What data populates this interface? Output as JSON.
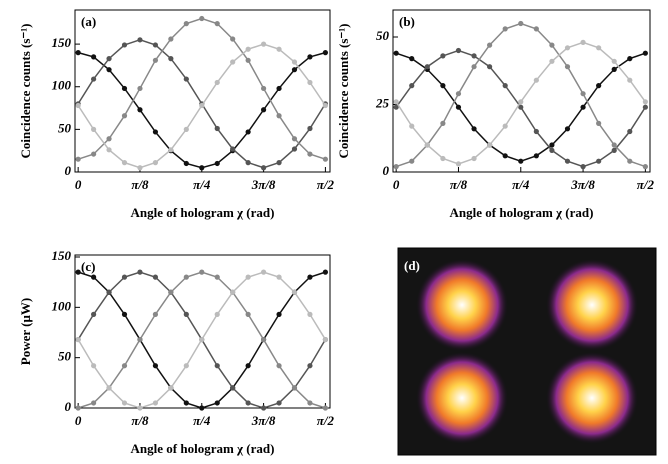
{
  "chart_data": [
    {
      "type": "line",
      "title": "(a)",
      "x_label": "Angle of hologram χ (rad)",
      "y_label": "Coincidence counts (s⁻¹)",
      "x": [
        0,
        0.0982,
        0.1963,
        0.2945,
        0.3927,
        0.4909,
        0.589,
        0.6872,
        0.7854,
        0.8836,
        0.9817,
        1.0799,
        1.1781,
        1.2763,
        1.3744,
        1.4726,
        1.5708
      ],
      "xlim": [
        -0.02,
        1.6
      ],
      "ylim": [
        0,
        190
      ],
      "xticks": [
        0,
        {
          "value": 0.3927,
          "label": "π/8"
        },
        {
          "value": 0.7854,
          "label": "π/4"
        },
        {
          "value": 1.1781,
          "label": "3π/8"
        },
        {
          "value": 1.5708,
          "label": "π/2"
        }
      ],
      "yticks": [
        0,
        50,
        100,
        150
      ],
      "series": [
        {
          "color": "#111111",
          "values": [
            140,
            135,
            120,
            98,
            73,
            47,
            25,
            10,
            5,
            10,
            25,
            47,
            73,
            98,
            120,
            135,
            140
          ]
        },
        {
          "color": "#555555",
          "values": [
            80,
            109,
            133,
            149,
            155,
            149,
            133,
            109,
            80,
            51,
            27,
            11,
            5,
            11,
            27,
            51,
            80
          ]
        },
        {
          "color": "#888888",
          "values": [
            15,
            21,
            39,
            66,
            98,
            131,
            156,
            174,
            180,
            174,
            156,
            131,
            98,
            66,
            39,
            21,
            15
          ]
        },
        {
          "color": "#bbbbbb",
          "values": [
            78,
            50,
            26,
            11,
            5,
            11,
            26,
            50,
            78,
            105,
            129,
            144,
            150,
            144,
            129,
            105,
            78
          ]
        }
      ]
    },
    {
      "type": "line",
      "title": "(b)",
      "x_label": "Angle of hologram χ (rad)",
      "y_label": "Coincidence counts (s⁻¹)",
      "x": [
        0,
        0.0982,
        0.1963,
        0.2945,
        0.3927,
        0.4909,
        0.589,
        0.6872,
        0.7854,
        0.8836,
        0.9817,
        1.0799,
        1.1781,
        1.2763,
        1.3744,
        1.4726,
        1.5708
      ],
      "xlim": [
        -0.02,
        1.6
      ],
      "ylim": [
        0,
        60
      ],
      "xticks": [
        0,
        {
          "value": 0.3927,
          "label": "π/8"
        },
        {
          "value": 0.7854,
          "label": "π/4"
        },
        {
          "value": 1.1781,
          "label": "3π/8"
        },
        {
          "value": 1.5708,
          "label": "π/2"
        }
      ],
      "yticks": [
        0,
        25,
        50
      ],
      "series": [
        {
          "color": "#111111",
          "values": [
            44,
            42,
            38,
            32,
            24,
            16,
            10,
            6,
            4,
            6,
            10,
            16,
            24,
            32,
            38,
            42,
            44
          ]
        },
        {
          "color": "#555555",
          "values": [
            24,
            32,
            39,
            43,
            45,
            43,
            39,
            32,
            24,
            15,
            8,
            4,
            2,
            4,
            8,
            15,
            24
          ]
        },
        {
          "color": "#888888",
          "values": [
            2,
            4,
            10,
            18,
            29,
            39,
            47,
            53,
            55,
            53,
            47,
            39,
            29,
            18,
            10,
            4,
            2
          ]
        },
        {
          "color": "#bbbbbb",
          "values": [
            26,
            17,
            10,
            5,
            3,
            5,
            10,
            17,
            26,
            34,
            41,
            46,
            48,
            46,
            41,
            34,
            26
          ]
        }
      ]
    },
    {
      "type": "line",
      "title": "(c)",
      "x_label": "Angle of hologram χ (rad)",
      "y_label": "Power (μW)",
      "x": [
        0,
        0.0982,
        0.1963,
        0.2945,
        0.3927,
        0.4909,
        0.589,
        0.6872,
        0.7854,
        0.8836,
        0.9817,
        1.0799,
        1.1781,
        1.2763,
        1.3744,
        1.4726,
        1.5708
      ],
      "xlim": [
        -0.02,
        1.6
      ],
      "ylim": [
        0,
        152
      ],
      "xticks": [
        0,
        {
          "value": 0.3927,
          "label": "π/8"
        },
        {
          "value": 0.7854,
          "label": "π/4"
        },
        {
          "value": 1.1781,
          "label": "3π/8"
        },
        {
          "value": 1.5708,
          "label": "π/2"
        }
      ],
      "yticks": [
        0,
        50,
        100,
        150
      ],
      "series": [
        {
          "color": "#111111",
          "values": [
            135,
            130,
            115,
            93,
            68,
            42,
            20,
            5,
            0,
            5,
            20,
            42,
            68,
            93,
            115,
            130,
            135
          ]
        },
        {
          "color": "#555555",
          "values": [
            68,
            93,
            115,
            130,
            135,
            130,
            115,
            93,
            68,
            42,
            20,
            5,
            0,
            5,
            20,
            42,
            68
          ]
        },
        {
          "color": "#888888",
          "values": [
            0,
            5,
            20,
            42,
            68,
            93,
            115,
            130,
            135,
            130,
            115,
            93,
            68,
            42,
            20,
            5,
            0
          ]
        },
        {
          "color": "#bbbbbb",
          "values": [
            68,
            42,
            20,
            5,
            0,
            5,
            20,
            42,
            68,
            93,
            115,
            130,
            135,
            130,
            115,
            93,
            68
          ]
        }
      ]
    }
  ],
  "image_panel": {
    "label": "(d)"
  }
}
